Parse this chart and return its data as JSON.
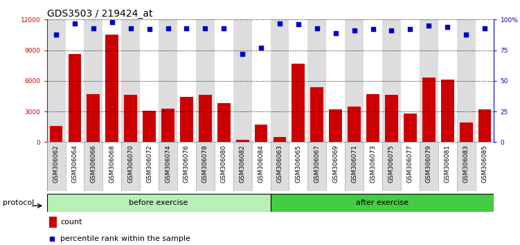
{
  "title": "GDS3503 / 219424_at",
  "categories": [
    "GSM306062",
    "GSM306064",
    "GSM306066",
    "GSM306068",
    "GSM306070",
    "GSM306072",
    "GSM306074",
    "GSM306076",
    "GSM306078",
    "GSM306080",
    "GSM306082",
    "GSM306084",
    "GSM306063",
    "GSM306065",
    "GSM306067",
    "GSM306069",
    "GSM306071",
    "GSM306073",
    "GSM306075",
    "GSM306077",
    "GSM306079",
    "GSM306081",
    "GSM306083",
    "GSM306085"
  ],
  "counts": [
    1600,
    8600,
    4700,
    10500,
    4600,
    3100,
    3300,
    4400,
    4600,
    3800,
    200,
    1700,
    500,
    7700,
    5400,
    3200,
    3500,
    4700,
    4600,
    2800,
    6300,
    6100,
    1900,
    3200
  ],
  "percentiles": [
    88,
    97,
    93,
    98,
    93,
    92,
    93,
    93,
    93,
    93,
    72,
    77,
    97,
    96,
    93,
    89,
    91,
    92,
    91,
    92,
    95,
    94,
    88,
    93
  ],
  "bar_color": "#cc0000",
  "dot_color": "#0000cc",
  "ylim_left": [
    0,
    12000
  ],
  "ylim_right": [
    0,
    100
  ],
  "yticks_left": [
    0,
    3000,
    6000,
    9000,
    12000
  ],
  "yticks_right": [
    0,
    25,
    50,
    75,
    100
  ],
  "ylabel_right_labels": [
    "0",
    "25",
    "50",
    "75",
    "100%"
  ],
  "ylabel_left_labels": [
    "0",
    "3000",
    "6000",
    "9000",
    "12000"
  ],
  "before_exercise_count": 12,
  "after_exercise_count": 12,
  "before_label": "before exercise",
  "after_label": "after exercise",
  "protocol_label": "protocol",
  "legend_count_label": "count",
  "legend_pct_label": "percentile rank within the sample",
  "before_color": "#b8f0b8",
  "after_color": "#44cc44",
  "col_odd_color": "#dddddd",
  "col_even_color": "#eeeeee",
  "title_fontsize": 10,
  "tick_fontsize": 6.5,
  "legend_fontsize": 8
}
